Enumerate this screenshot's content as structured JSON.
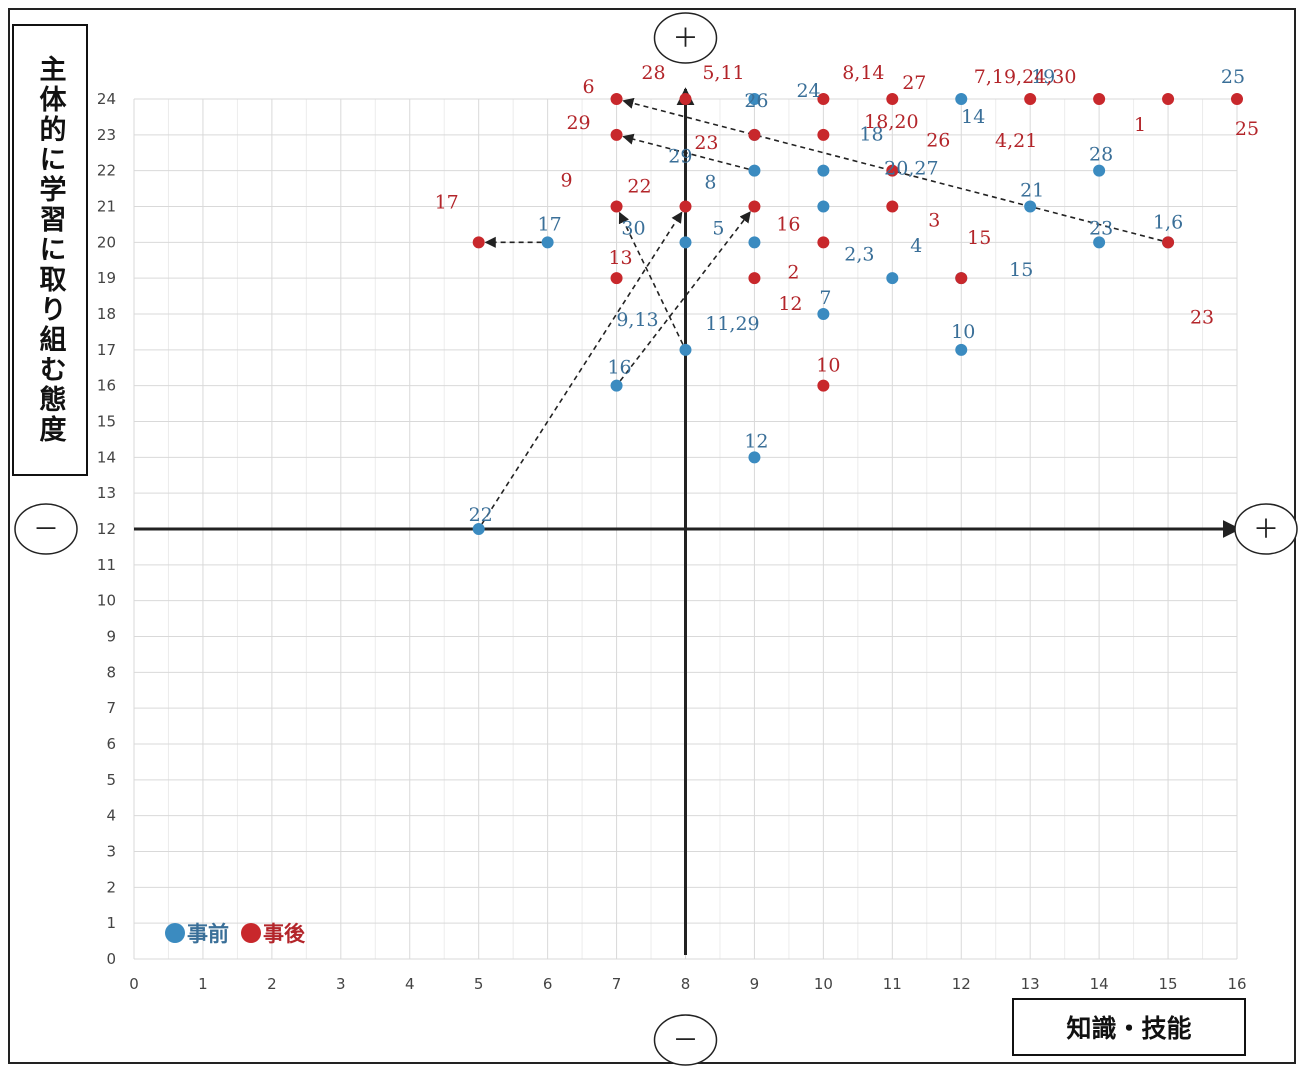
{
  "chart_data": {
    "type": "scatter",
    "xlabel": "知識・技能",
    "ylabel": "主体的に学習に取り組む態度",
    "xlim": [
      0,
      16
    ],
    "ylim": [
      0,
      24
    ],
    "x_ticks": [
      "0",
      "1",
      "2",
      "3",
      "4",
      "5",
      "6",
      "7",
      "8",
      "9",
      "10",
      "11",
      "12",
      "13",
      "14",
      "15",
      "16"
    ],
    "y_ticks": [
      "0",
      "1",
      "2",
      "3",
      "4",
      "5",
      "6",
      "7",
      "8",
      "9",
      "10",
      "11",
      "12",
      "13",
      "14",
      "15",
      "16",
      "17",
      "18",
      "19",
      "20",
      "21",
      "22",
      "23",
      "24"
    ],
    "grid": true,
    "axis_cross": {
      "x": 8,
      "y": 12
    },
    "quadrant_signs": {
      "top": "＋",
      "bottom": "－",
      "left": "－",
      "right": "＋"
    },
    "legend_position": "bottom-left",
    "colors": {
      "before": "#3b8bc0",
      "after": "#c8282c",
      "before_label": "#3a6f98",
      "after_label": "#b3252a"
    },
    "series": [
      {
        "name": "事前",
        "points": [
          {
            "x": 9,
            "y": 24
          },
          {
            "x": 12,
            "y": 24
          },
          {
            "x": 9,
            "y": 23
          },
          {
            "x": 9,
            "y": 22
          },
          {
            "x": 10,
            "y": 22
          },
          {
            "x": 14,
            "y": 22
          },
          {
            "x": 10,
            "y": 21
          },
          {
            "x": 13,
            "y": 21
          },
          {
            "x": 6,
            "y": 20
          },
          {
            "x": 8,
            "y": 20
          },
          {
            "x": 9,
            "y": 20
          },
          {
            "x": 14,
            "y": 20
          },
          {
            "x": 15,
            "y": 20
          },
          {
            "x": 11,
            "y": 19
          },
          {
            "x": 12,
            "y": 19
          },
          {
            "x": 10,
            "y": 18
          },
          {
            "x": 8,
            "y": 17
          },
          {
            "x": 12,
            "y": 17
          },
          {
            "x": 7,
            "y": 16
          },
          {
            "x": 9,
            "y": 14
          },
          {
            "x": 5,
            "y": 12
          }
        ],
        "labels": [
          {
            "text": "24",
            "x": 9,
            "y": 24
          },
          {
            "text": "14",
            "x": 12,
            "y": 24
          },
          {
            "text": "19",
            "x": 13,
            "y": 24
          },
          {
            "text": "25",
            "x": 16,
            "y": 24
          },
          {
            "text": "26",
            "x": 9,
            "y": 23
          },
          {
            "text": "18",
            "x": 10,
            "y": 22
          },
          {
            "text": "29",
            "x": 9,
            "y": 22
          },
          {
            "text": "28",
            "x": 14,
            "y": 22
          },
          {
            "text": "8",
            "x": 9,
            "y": 21
          },
          {
            "text": "20,27",
            "x": 10,
            "y": 21
          },
          {
            "text": "21",
            "x": 13,
            "y": 21
          },
          {
            "text": "17",
            "x": 6,
            "y": 20
          },
          {
            "text": "30",
            "x": 8,
            "y": 20
          },
          {
            "text": "5",
            "x": 9,
            "y": 20
          },
          {
            "text": "2,3",
            "x": 10,
            "y": 20
          },
          {
            "text": "23",
            "x": 14,
            "y": 20
          },
          {
            "text": "1,6",
            "x": 15,
            "y": 20
          },
          {
            "text": "4",
            "x": 11,
            "y": 19
          },
          {
            "text": "15",
            "x": 12,
            "y": 19
          },
          {
            "text": "7",
            "x": 10,
            "y": 18
          },
          {
            "text": "9,13",
            "x": 8,
            "y": 17
          },
          {
            "text": "11,29",
            "x": 9,
            "y": 19
          },
          {
            "text": "10",
            "x": 12,
            "y": 17
          },
          {
            "text": "16",
            "x": 7,
            "y": 16
          },
          {
            "text": "12",
            "x": 9,
            "y": 14
          },
          {
            "text": "22",
            "x": 5,
            "y": 12
          }
        ]
      },
      {
        "name": "事後",
        "points": [
          {
            "x": 7,
            "y": 24
          },
          {
            "x": 8,
            "y": 24
          },
          {
            "x": 10,
            "y": 24
          },
          {
            "x": 11,
            "y": 24
          },
          {
            "x": 13,
            "y": 24
          },
          {
            "x": 14,
            "y": 24
          },
          {
            "x": 15,
            "y": 24
          },
          {
            "x": 16,
            "y": 24
          },
          {
            "x": 7,
            "y": 23
          },
          {
            "x": 9,
            "y": 23
          },
          {
            "x": 10,
            "y": 23
          },
          {
            "x": 11,
            "y": 22
          },
          {
            "x": 7,
            "y": 21
          },
          {
            "x": 8,
            "y": 21
          },
          {
            "x": 9,
            "y": 21
          },
          {
            "x": 11,
            "y": 21
          },
          {
            "x": 5,
            "y": 20
          },
          {
            "x": 10,
            "y": 20
          },
          {
            "x": 15,
            "y": 20
          },
          {
            "x": 7,
            "y": 19
          },
          {
            "x": 9,
            "y": 19
          },
          {
            "x": 12,
            "y": 19
          },
          {
            "x": 10,
            "y": 16
          }
        ],
        "labels": [
          {
            "text": "6",
            "x": 7,
            "y": 24
          },
          {
            "text": "28",
            "x": 8,
            "y": 24
          },
          {
            "text": "5,11",
            "x": 8,
            "y": 24
          },
          {
            "text": "8,14",
            "x": 10,
            "y": 24
          },
          {
            "text": "27",
            "x": 11,
            "y": 24
          },
          {
            "text": "7,19,24,30",
            "x": 14,
            "y": 24
          },
          {
            "text": "1",
            "x": 15,
            "y": 24
          },
          {
            "text": "25",
            "x": 16,
            "y": 24
          },
          {
            "text": "4,21",
            "x": 13,
            "y": 24
          },
          {
            "text": "29",
            "x": 7,
            "y": 23
          },
          {
            "text": "23",
            "x": 9,
            "y": 23
          },
          {
            "text": "18,20",
            "x": 10,
            "y": 23
          },
          {
            "text": "26",
            "x": 11,
            "y": 22
          },
          {
            "text": "9",
            "x": 7,
            "y": 21
          },
          {
            "text": "22",
            "x": 8,
            "y": 21
          },
          {
            "text": "16",
            "x": 9,
            "y": 21
          },
          {
            "text": "3",
            "x": 11,
            "y": 21
          },
          {
            "text": "17",
            "x": 5,
            "y": 20
          },
          {
            "text": "15",
            "x": 12,
            "y": 19
          },
          {
            "text": "2",
            "x": 10,
            "y": 20
          },
          {
            "text": "23",
            "x": 15,
            "y": 20
          },
          {
            "text": "13",
            "x": 7,
            "y": 19
          },
          {
            "text": "12",
            "x": 9,
            "y": 19
          },
          {
            "text": "10",
            "x": 10,
            "y": 16
          }
        ]
      }
    ],
    "arrows": [
      {
        "from": [
          15,
          20
        ],
        "to": [
          7,
          24
        ]
      },
      {
        "from": [
          9,
          22
        ],
        "to": [
          7,
          23
        ]
      },
      {
        "from": [
          6,
          20
        ],
        "to": [
          5,
          20
        ]
      },
      {
        "from": [
          8,
          17
        ],
        "to": [
          7,
          21
        ]
      },
      {
        "from": [
          7,
          16
        ],
        "to": [
          9,
          21
        ]
      },
      {
        "from": [
          5,
          12
        ],
        "to": [
          8,
          21
        ]
      }
    ]
  }
}
